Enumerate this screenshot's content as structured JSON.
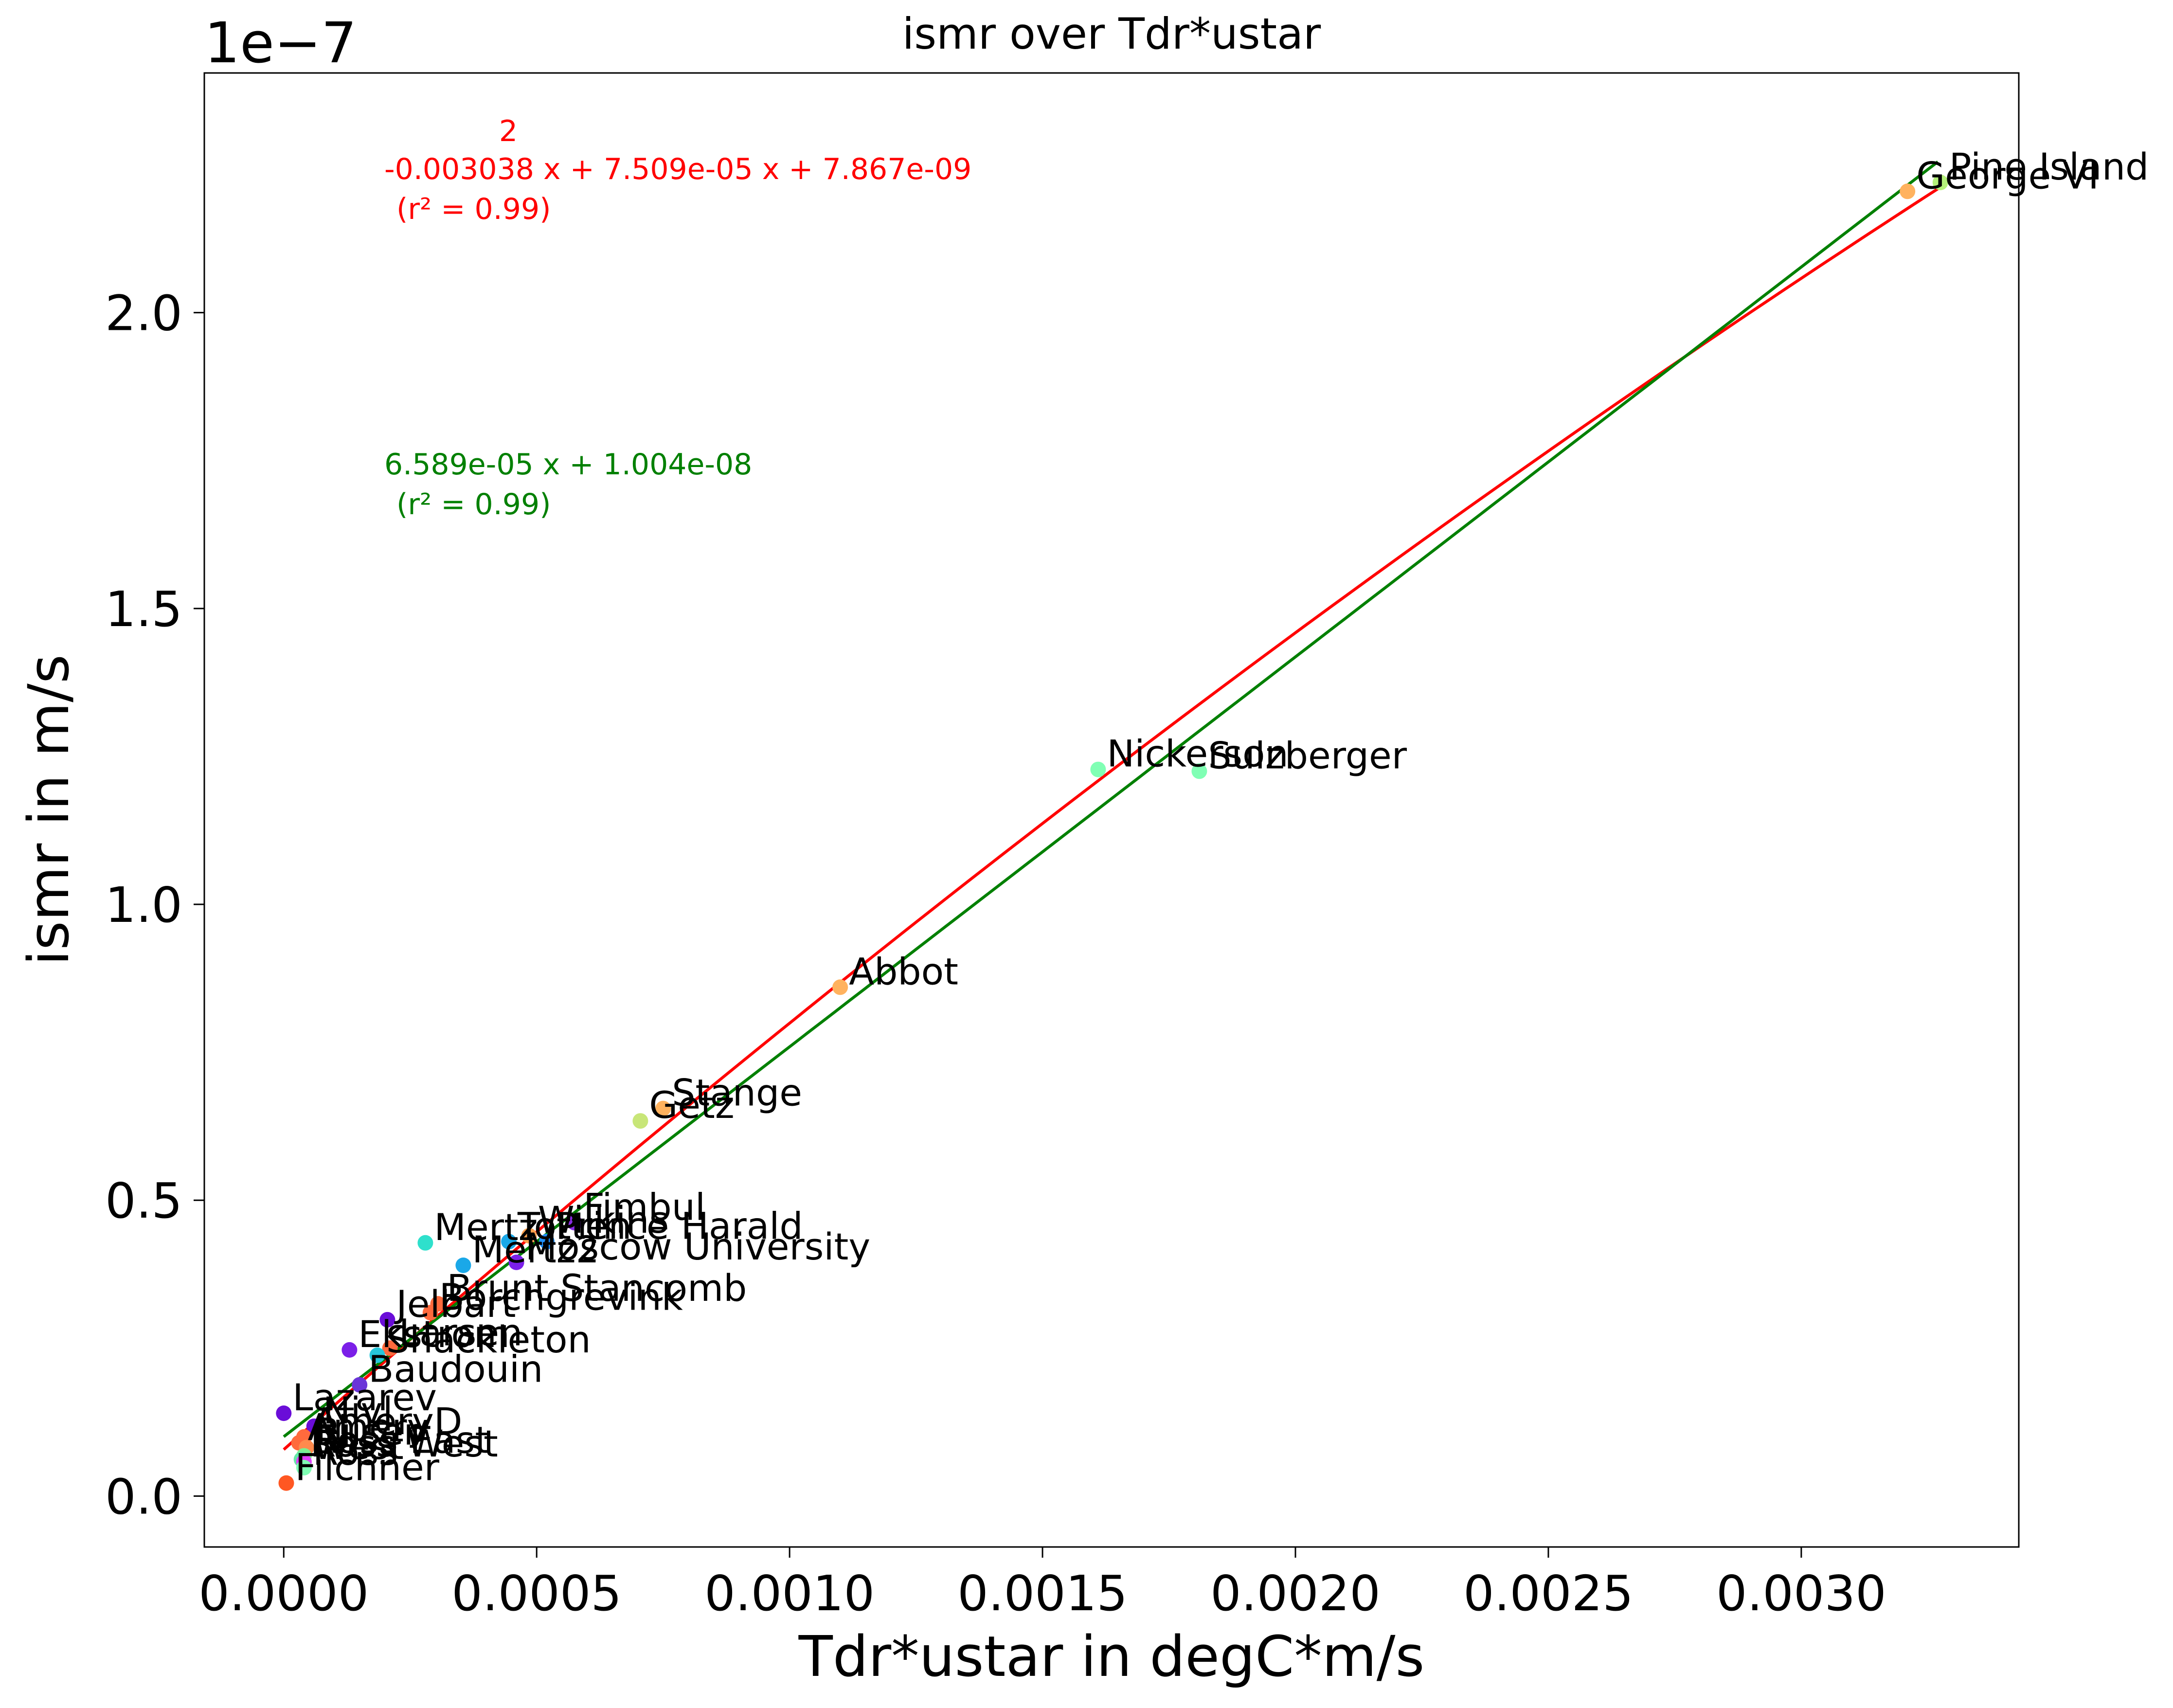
{
  "chart_data": {
    "type": "scatter",
    "title": "ismr over Tdr*ustar",
    "xlabel": "Tdr*ustar in degC*m/s",
    "ylabel": "ismr in m/s",
    "y_offset_label": "1e−7",
    "xlim": [
      -0.000157,
      0.00343
    ],
    "ylim": [
      -0.086,
      2.405
    ],
    "x_ticks": [
      0.0,
      0.0005,
      0.001,
      0.0015,
      0.002,
      0.0025,
      0.003
    ],
    "x_tick_labels": [
      "0.0000",
      "0.0005",
      "0.0010",
      "0.0015",
      "0.0020",
      "0.0025",
      "0.0030"
    ],
    "y_ticks": [
      0.0,
      0.5,
      1.0,
      1.5,
      2.0
    ],
    "y_tick_labels": [
      "0.0",
      "0.5",
      "1.0",
      "1.5",
      "2.0"
    ],
    "grid": false,
    "points": [
      {
        "label": "Pine Island",
        "x": 0.003275,
        "y": 2.22,
        "color": "#b4f07a"
      },
      {
        "label": "George VI",
        "x": 0.00321,
        "y": 2.205,
        "color": "#ffb25e"
      },
      {
        "label": "Nickerson",
        "x": 0.00161,
        "y": 1.228,
        "color": "#80ffb4"
      },
      {
        "label": "Sulzberger",
        "x": 0.00181,
        "y": 1.225,
        "color": "#80ffb4"
      },
      {
        "label": "Abbot",
        "x": 0.0011,
        "y": 0.86,
        "color": "#ffb25e"
      },
      {
        "label": "Stange",
        "x": 0.00075,
        "y": 0.655,
        "color": "#ffb25e"
      },
      {
        "label": "Getz",
        "x": 0.000705,
        "y": 0.634,
        "color": "#c8e678"
      },
      {
        "label": "Fimbul",
        "x": 0.000575,
        "y": 0.462,
        "color": "#8a2be2"
      },
      {
        "label": "Wilkins",
        "x": 0.000485,
        "y": 0.44,
        "color": "#ffa04e"
      },
      {
        "label": "Mertz",
        "x": 0.00028,
        "y": 0.428,
        "color": "#2ee0cc"
      },
      {
        "label": "Totten",
        "x": 0.000445,
        "y": 0.43,
        "color": "#1aa8e8"
      },
      {
        "label": "Prince Harald",
        "x": 0.00052,
        "y": 0.43,
        "color": "#1e90ff"
      },
      {
        "label": "Moscow University",
        "x": 0.00046,
        "y": 0.395,
        "color": "#7b1fe8"
      },
      {
        "label": "Mertz2",
        "x": 0.000355,
        "y": 0.39,
        "color": "#1aa8e8"
      },
      {
        "label": "Brunt Stancomb",
        "x": 0.000305,
        "y": 0.325,
        "color": "#ff6a3d"
      },
      {
        "label": "Borchgrevink",
        "x": 0.00029,
        "y": 0.31,
        "color": "#ff6a3d"
      },
      {
        "label": "Jelbart",
        "x": 0.000205,
        "y": 0.298,
        "color": "#6a0dd8"
      },
      {
        "label": "Ekstrom",
        "x": 0.00013,
        "y": 0.247,
        "color": "#7b1fe8"
      },
      {
        "label": "Larsen",
        "x": 0.00021,
        "y": 0.25,
        "color": "#ff6a3d"
      },
      {
        "label": "Shackleton",
        "x": 0.000185,
        "y": 0.238,
        "color": "#26c6da"
      },
      {
        "label": "Baudouin",
        "x": 0.00015,
        "y": 0.188,
        "color": "#6a35d8"
      },
      {
        "label": "Lazarev",
        "x": 0.0,
        "y": 0.14,
        "color": "#6a0dd8"
      },
      {
        "label": "Nivl",
        "x": 6e-05,
        "y": 0.118,
        "color": "#6a0dd8"
      },
      {
        "label": "AmeryD",
        "x": 4e-05,
        "y": 0.1,
        "color": "#ff6a3d"
      },
      {
        "label": "Amery",
        "x": 3e-05,
        "y": 0.09,
        "color": "#ff6a3d"
      },
      {
        "label": "Riiser",
        "x": 4.5e-05,
        "y": 0.082,
        "color": "#ff8a4d"
      },
      {
        "label": "Ross East",
        "x": 4e-05,
        "y": 0.068,
        "color": "#7cf090"
      },
      {
        "label": "Ross West",
        "x": 3.5e-05,
        "y": 0.062,
        "color": "#66e8a8"
      },
      {
        "label": "West",
        "x": 4e-05,
        "y": 0.058,
        "color": "#e040fb"
      },
      {
        "label": "Filchner",
        "x": 5e-06,
        "y": 0.022,
        "color": "#ff5722"
      },
      {
        "label": "Ross",
        "x": 4e-05,
        "y": 0.048,
        "color": "#80ffb4"
      }
    ],
    "fits": [
      {
        "name": "quadratic",
        "color": "#ff0000",
        "coeffs": [
          -0.003038,
          7.509e-05,
          7.867e-09
        ],
        "exponent_label": "2",
        "equation": "-0.003038 x + 7.509e-05 x + 7.867e-09",
        "r2_label": "(r² = 0.99)",
        "x_range": [
          0.0,
          0.00327
        ]
      },
      {
        "name": "linear",
        "color": "#008000",
        "coeffs": [
          6.589e-05,
          1.004e-08
        ],
        "equation": "6.589e-05 x + 1.004e-08",
        "r2_label": "(r² = 0.99)",
        "x_range": [
          0.0,
          0.00327
        ]
      }
    ]
  }
}
